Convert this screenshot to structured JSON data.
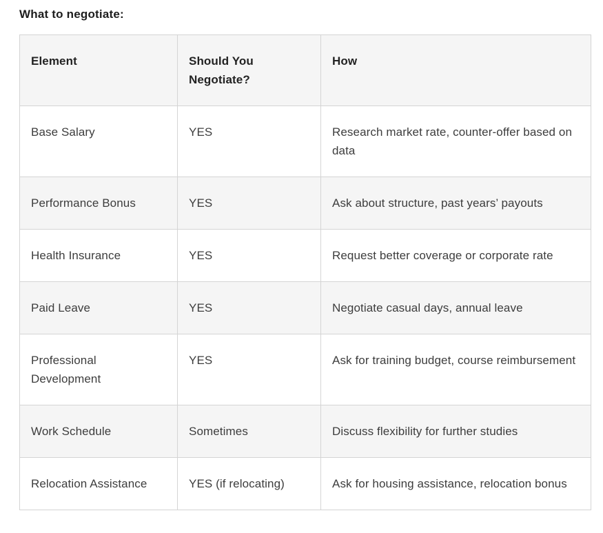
{
  "title": "What to negotiate:",
  "table": {
    "columns": {
      "element": "Element",
      "should_negotiate": "Should You Negotiate?",
      "how": "How"
    },
    "rows": [
      {
        "element": "Base Salary",
        "should_negotiate": "YES",
        "how": "Research market rate, counter-offer based on data"
      },
      {
        "element": "Performance Bonus",
        "should_negotiate": "YES",
        "how": "Ask about structure, past years’ payouts"
      },
      {
        "element": "Health Insurance",
        "should_negotiate": "YES",
        "how": "Request better coverage or corporate rate"
      },
      {
        "element": "Paid Leave",
        "should_negotiate": "YES",
        "how": "Negotiate casual days, annual leave"
      },
      {
        "element": "Professional Development",
        "should_negotiate": "YES",
        "how": "Ask for training budget, course reimbursement"
      },
      {
        "element": "Work Schedule",
        "should_negotiate": "Sometimes",
        "how": "Discuss flexibility for further studies"
      },
      {
        "element": "Relocation Assistance",
        "should_negotiate": "YES (if relocating)",
        "how": "Ask for housing assistance, relocation bonus"
      }
    ]
  },
  "colors": {
    "stripe_background": "#f5f5f5",
    "row_background": "#ffffff",
    "border": "#d4d4d4",
    "body_text": "#3d3d3d",
    "heading_text": "#1d1d1d"
  }
}
